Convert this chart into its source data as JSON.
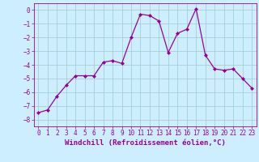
{
  "x": [
    0,
    1,
    2,
    3,
    4,
    5,
    6,
    7,
    8,
    9,
    10,
    11,
    12,
    13,
    14,
    15,
    16,
    17,
    18,
    19,
    20,
    21,
    22,
    23
  ],
  "y": [
    -7.5,
    -7.3,
    -6.3,
    -5.5,
    -4.8,
    -4.8,
    -4.8,
    -3.8,
    -3.7,
    -3.9,
    -2.0,
    -0.3,
    -0.4,
    -0.8,
    -3.1,
    -1.7,
    -1.4,
    0.1,
    -3.3,
    -4.3,
    -4.4,
    -4.3,
    -5.0,
    -5.7
  ],
  "line_color": "#990099",
  "marker": "D",
  "marker_size": 2.0,
  "linewidth": 0.9,
  "bg_color": "#cceeff",
  "grid_color": "#99cccc",
  "xlabel": "Windchill (Refroidissement éolien,°C)",
  "xlim_left": -0.5,
  "xlim_right": 23.5,
  "ylim_bottom": -8.5,
  "ylim_top": 0.5,
  "yticks": [
    0,
    -1,
    -2,
    -3,
    -4,
    -5,
    -6,
    -7,
    -8
  ],
  "xticks": [
    0,
    1,
    2,
    3,
    4,
    5,
    6,
    7,
    8,
    9,
    10,
    11,
    12,
    13,
    14,
    15,
    16,
    17,
    18,
    19,
    20,
    21,
    22,
    23
  ],
  "tick_color": "#990099",
  "label_color": "#990099",
  "tick_fontsize": 5.5,
  "xlabel_fontsize": 6.5
}
